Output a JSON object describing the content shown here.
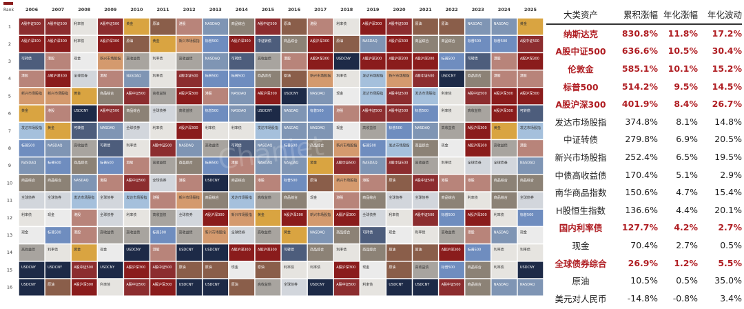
{
  "chart_data": [
    {
      "type": "heatmap",
      "title": "",
      "rank_label": "Rank",
      "years": [
        "2006",
        "2007",
        "2008",
        "2009",
        "2010",
        "2011",
        "2012",
        "2013",
        "2014",
        "2015",
        "2016",
        "2017",
        "2018",
        "2019",
        "2020",
        "2021",
        "2022",
        "2023",
        "2024",
        "2025"
      ],
      "ranks": [
        "1",
        "2",
        "3",
        "4",
        "5",
        "6",
        "7",
        "8",
        "9",
        "10",
        "11",
        "12",
        "13",
        "14",
        "15",
        "16"
      ],
      "asset_colors": {
        "A股中证500": "#8c2d2f",
        "A股沪深300": "#8a1c1c",
        "NASDAQ": "#7f95b4",
        "标普500": "#6f8dbf",
        "发达市场股指": "#a5c0dc",
        "新兴市场股指": "#d49a6e",
        "港股": "#b8847a",
        "伦敦金": "#d9a441",
        "黄金": "#d9a441",
        "原油": "#8a5e4a",
        "商品综合": "#8c8276",
        "中证转债": "#4d5d7c",
        "可转债": "#4d5d7c",
        "高收益债": "#a8a49f",
        "全球债券": "#d2d6dc",
        "利率债": "#e6e4e0",
        "现金": "#ebebeb",
        "USDCNY": "#1d2a47"
      },
      "cells": [
        [
          "A股中证500",
          "A股中证500",
          "利率债",
          "A股中证500",
          "黄金",
          "原油",
          "港股",
          "NASDAQ",
          "商品综合",
          "A股中证500",
          "原油",
          "港股",
          "利率债",
          "A股沪深300",
          "A股中证500",
          "原油",
          "原油",
          "NASDAQ",
          "NASDAQ",
          "黄金"
        ],
        [
          "A股沪深300",
          "A股沪深300",
          "利率债",
          "A股沪深300",
          "原油",
          "黄金",
          "新兴市场股指",
          "标普500",
          "A股沪深300",
          "中证转债",
          "商品综合",
          "A股沪深300",
          "原油",
          "NASDAQ",
          "A股沪深300",
          "商品综合",
          "商品综合",
          "标普500",
          "标普500",
          "A股中证500"
        ],
        [
          "可转债",
          "港股",
          "现金",
          "新兴市场股指",
          "高收益债",
          "利率债",
          "高收益债",
          "NASDAQ",
          "可转债",
          "高收益债",
          "港股",
          "A股沪深300",
          "USDCNY",
          "A股沪深300",
          "A股沪深300",
          "A股沪深300",
          "标普500",
          "可转债",
          "港股",
          "A股沪深300"
        ],
        [
          "港股",
          "A股沪深300",
          "全球债券",
          "港股",
          "NASDAQ",
          "利率债",
          "A股中证500",
          "标普500",
          "标普500",
          "商品综合",
          "原油",
          "新兴市场股指",
          "利率债",
          "发达市场股指",
          "新兴市场股指",
          "A股中证500",
          "USDCNY",
          "商品综合",
          "港股",
          "港股"
        ],
        [
          "新兴市场股指",
          "新兴市场股指",
          "黄金",
          "商品综合",
          "A股中证500",
          "高收益债",
          "A股沪深300",
          "港股",
          "NASDAQ",
          "A股沪深300",
          "USDCNY",
          "NASDAQ",
          "现金",
          "发达市场股指",
          "A股中证500",
          "发达市场股指",
          "利率债",
          "A股中证500",
          "A股沪深300",
          "A股沪深300"
        ],
        [
          "黄金",
          "港股",
          "USDCNY",
          "A股中证500",
          "商品综合",
          "全球债券",
          "高收益债",
          "标普500",
          "NASDAQ",
          "USDCNY",
          "NASDAQ",
          "标普500",
          "港股",
          "A股中证500",
          "A股中证500",
          "标普500",
          "利率债",
          "高收益债",
          "A股沪深300",
          "可转债"
        ],
        [
          "发达市场股指",
          "黄金",
          "可转债",
          "NASDAQ",
          "全球债券",
          "利率债",
          "A股沪深300",
          "利率债",
          "利率债",
          "发达市场股指",
          "NASDAQ",
          "NASDAQ",
          "现金",
          "高收益债",
          "标普500",
          "NASDAQ",
          "高收益债",
          "A股沪深300",
          "黄金",
          "发达市场股指"
        ],
        [
          "标普500",
          "NASDAQ",
          "高收益债",
          "可转债",
          "利率债",
          "A股中证500",
          "NASDAQ",
          "高收益债",
          "可转债",
          "NASDAQ",
          "标普500",
          "商品综合",
          "新兴市场股指",
          "标普500",
          "发达市场股指",
          "商品综合",
          "现金",
          "A股沪深300",
          "高收益债",
          "港股"
        ],
        [
          "NASDAQ",
          "标普500",
          "商品综合",
          "标普500",
          "港股",
          "高收益债",
          "商品综合",
          "标普500",
          "港股",
          "NASDAQ",
          "NASDAQ",
          "黄金",
          "A股中证500",
          "NASDAQ",
          "A股中证500",
          "高收益债",
          "利率债",
          "全球债券",
          "全球债券",
          "NASDAQ"
        ],
        [
          "商品综合",
          "商品综合",
          "NASDAQ",
          "港股",
          "A股中证500",
          "全球债券",
          "港股",
          "USDCNY",
          "商品综合",
          "港股",
          "标普500",
          "原油",
          "新兴市场股指",
          "港股",
          "原油",
          "A股中证500",
          "港股",
          "港股",
          "商品综合",
          "商品综合"
        ],
        [
          "全球债券",
          "全球债券",
          "发达市场股指",
          "全球债券",
          "发达市场股指",
          "港股",
          "新兴市场股指",
          "商品综合",
          "发达市场股指",
          "高收益债",
          "商品综合",
          "现金",
          "港股",
          "商品综合",
          "全球债券",
          "全球债券",
          "商品综合",
          "利率债",
          "商品综合",
          "全球债券"
        ],
        [
          "利率债",
          "现金",
          "港股",
          "全球债券",
          "利率债",
          "高收益债",
          "全球债券",
          "A股沪深300",
          "新兴市场股指",
          "黄金",
          "A股沪深300",
          "新兴市场股指",
          "A股沪深300",
          "全球债券",
          "利率债",
          "A股中证500",
          "标普500",
          "A股沪深300",
          "利率债",
          "标普500"
        ],
        [
          "现金",
          "标普500",
          "港股",
          "高收益债",
          "高收益债",
          "标普500",
          "高收益债",
          "新兴市场股指",
          "全球债券",
          "高收益债",
          "黄金",
          "NASDAQ",
          "商品综合",
          "可转债",
          "现金",
          "利率债",
          "高收益债",
          "港股",
          "NASDAQ",
          "现金"
        ],
        [
          "高收益债",
          "利率债",
          "黄金",
          "现金",
          "USDCNY",
          "港股",
          "USDCNY",
          "USDCNY",
          "A股沪深300",
          "A股沪深300",
          "可转债",
          "商品综合",
          "利率债",
          "商品综合",
          "原油",
          "原油",
          "A股沪深300",
          "标普500",
          "利率债",
          "利率债"
        ],
        [
          "USDCNY",
          "USDCNY",
          "A股中证500",
          "USDCNY",
          "A股沪深300",
          "A股中证500",
          "原油",
          "原油",
          "现金",
          "原油",
          "利率债",
          "利率债",
          "A股沪深300",
          "现金",
          "原油",
          "高收益债",
          "标普500",
          "商品综合",
          "利率债",
          "USDCNY"
        ],
        [
          "USDCNY",
          "原油",
          "A股沪深300",
          "利率债",
          "A股中证500",
          "A股沪深300",
          "USDCNY",
          "USDCNY",
          "原油",
          "高收益债",
          "全球债券",
          "USDCNY",
          "A股中证500",
          "利率债",
          "USDCNY",
          "USDCNY",
          "A股中证500",
          "商品综合",
          "NASDAQ",
          "NASDAQ"
        ]
      ],
      "watermark": "Chanjet"
    },
    {
      "type": "table",
      "columns": [
        "大类资产",
        "累积涨幅",
        "年化涨幅",
        "年化波动"
      ],
      "rows": [
        {
          "asset": "纳斯达克",
          "cumulative": "830.8%",
          "annual_return": "11.8%",
          "annual_vol": "17.2%",
          "highlight": true
        },
        {
          "asset": "A股中证500",
          "cumulative": "636.6%",
          "annual_return": "10.5%",
          "annual_vol": "30.4%",
          "highlight": true
        },
        {
          "asset": "伦敦金",
          "cumulative": "585.1%",
          "annual_return": "10.1%",
          "annual_vol": "15.2%",
          "highlight": true
        },
        {
          "asset": "标普500",
          "cumulative": "514.2%",
          "annual_return": "9.5%",
          "annual_vol": "14.5%",
          "highlight": true
        },
        {
          "asset": "A股沪深300",
          "cumulative": "401.9%",
          "annual_return": "8.4%",
          "annual_vol": "26.7%",
          "highlight": true
        },
        {
          "asset": "发达市场股指",
          "cumulative": "374.8%",
          "annual_return": "8.1%",
          "annual_vol": "14.8%",
          "highlight": false
        },
        {
          "asset": "中证转债",
          "cumulative": "279.8%",
          "annual_return": "6.9%",
          "annual_vol": "20.5%",
          "highlight": false
        },
        {
          "asset": "新兴市场股指",
          "cumulative": "252.4%",
          "annual_return": "6.5%",
          "annual_vol": "19.5%",
          "highlight": false
        },
        {
          "asset": "中债高收益债",
          "cumulative": "170.4%",
          "annual_return": "5.1%",
          "annual_vol": "2.9%",
          "highlight": false
        },
        {
          "asset": "南华商品指数",
          "cumulative": "150.6%",
          "annual_return": "4.7%",
          "annual_vol": "15.4%",
          "highlight": false
        },
        {
          "asset": "H股恒生指数",
          "cumulative": "136.6%",
          "annual_return": "4.4%",
          "annual_vol": "20.1%",
          "highlight": false
        },
        {
          "asset": "国内利率债",
          "cumulative": "127.7%",
          "annual_return": "4.2%",
          "annual_vol": "2.7%",
          "highlight": true
        },
        {
          "asset": "现金",
          "cumulative": "70.4%",
          "annual_return": "2.7%",
          "annual_vol": "0.5%",
          "highlight": false
        },
        {
          "asset": "全球债券综合",
          "cumulative": "26.9%",
          "annual_return": "1.2%",
          "annual_vol": "5.5%",
          "highlight": true
        },
        {
          "asset": "原油",
          "cumulative": "10.5%",
          "annual_return": "0.5%",
          "annual_vol": "35.0%",
          "highlight": false
        },
        {
          "asset": "美元对人民币",
          "cumulative": "-14.8%",
          "annual_return": "-0.8%",
          "annual_vol": "3.4%",
          "highlight": false
        }
      ]
    }
  ]
}
